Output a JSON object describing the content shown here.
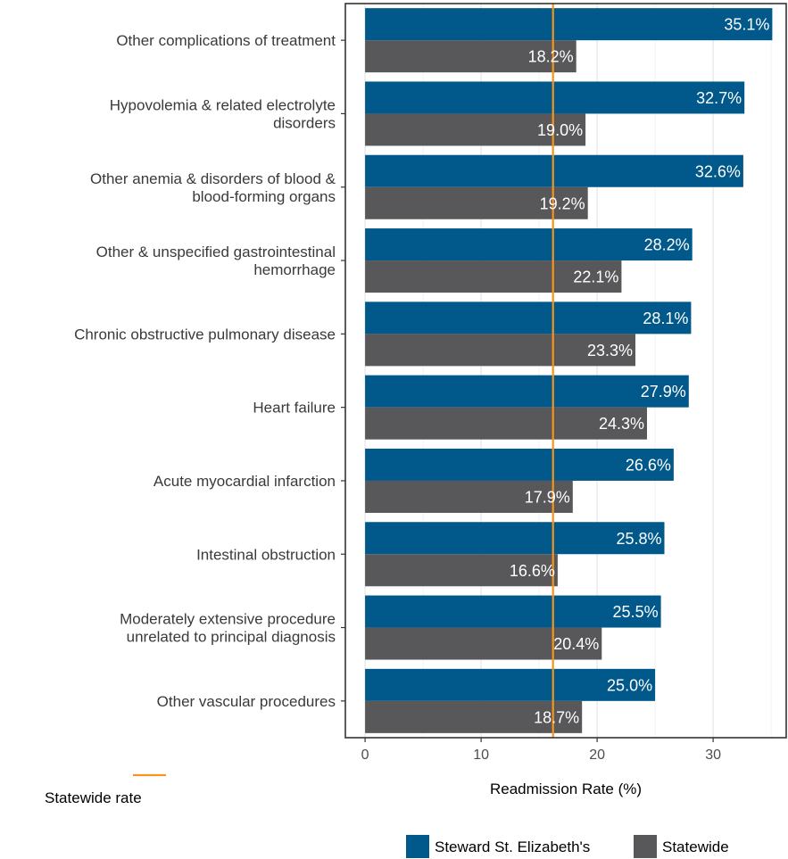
{
  "chart_data": {
    "type": "bar",
    "orientation": "horizontal",
    "categories": [
      [
        "Other complications of treatment"
      ],
      [
        "Hypovolemia & related electrolyte",
        "disorders"
      ],
      [
        "Other anemia & disorders of blood &",
        "blood-forming organs"
      ],
      [
        "Other & unspecified gastrointestinal",
        "hemorrhage"
      ],
      [
        "Chronic obstructive pulmonary disease"
      ],
      [
        "Heart failure"
      ],
      [
        "Acute myocardial infarction"
      ],
      [
        "Intestinal obstruction"
      ],
      [
        "Moderately extensive procedure",
        "unrelated to principal diagnosis"
      ],
      [
        "Other vascular procedures"
      ]
    ],
    "series": [
      {
        "name": "Steward St. Elizabeth's",
        "color": "#00598a",
        "values": [
          35.1,
          32.7,
          32.6,
          28.2,
          28.1,
          27.9,
          26.6,
          25.8,
          25.5,
          25.0
        ],
        "labels": [
          "35.1%",
          "32.7%",
          "32.6%",
          "28.2%",
          "28.1%",
          "27.9%",
          "26.6%",
          "25.8%",
          "25.5%",
          "25.0%"
        ]
      },
      {
        "name": "Statewide",
        "color": "#58585a",
        "values": [
          18.2,
          19.0,
          19.2,
          22.1,
          23.3,
          24.3,
          17.9,
          16.6,
          20.4,
          18.7
        ],
        "labels": [
          "18.2%",
          "19.0%",
          "19.2%",
          "22.1%",
          "23.3%",
          "24.3%",
          "17.9%",
          "16.6%",
          "20.4%",
          "18.7%"
        ]
      }
    ],
    "reference_line": {
      "value": 16.2,
      "label": "Statewide rate",
      "color": "#f7941d"
    },
    "xlabel": "Readmission Rate (%)",
    "xticks": [
      0,
      10,
      20,
      30
    ],
    "xlim": [
      -1.7,
      36.3
    ],
    "grid": true,
    "legend_position": "bottom-right"
  }
}
